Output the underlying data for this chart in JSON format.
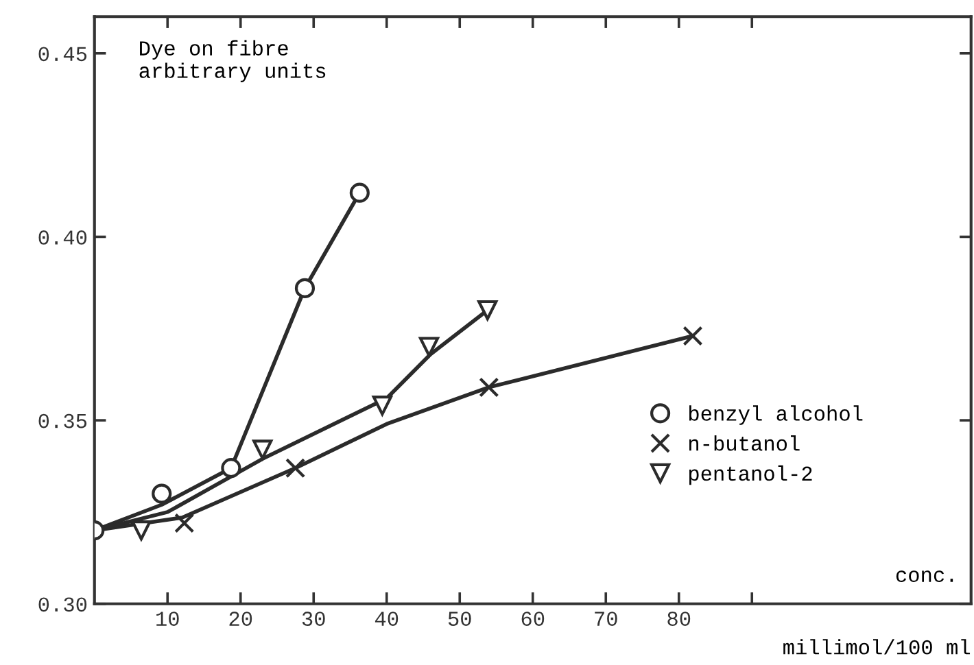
{
  "chart_data": {
    "type": "scatter",
    "ylabel": "Dye on fibre\narbitrary units",
    "xlabel": "millimol/100 ml",
    "annotations": [
      "conc."
    ],
    "xlim": [
      0,
      120
    ],
    "ylim": [
      0.3,
      0.46
    ],
    "xticks": [
      10,
      20,
      30,
      40,
      50,
      60,
      70,
      80,
      {
        "value": 90,
        "label": null
      }
    ],
    "yticks": [
      {
        "value": 0.3,
        "label": "0.30"
      },
      0.35,
      {
        "value": 0.4,
        "label": "0.40"
      },
      0.45
    ],
    "grid": false,
    "legend": "right",
    "line_style": "solid",
    "series": [
      {
        "name": "benzyl alcohol",
        "color": "#2b2b2b",
        "marker": "circle",
        "x": [
          0,
          9.2,
          18.7,
          28.8,
          36.3
        ],
        "values": [
          0.32,
          0.33,
          0.337,
          0.386,
          0.412
        ]
      },
      {
        "name": "n-butanol",
        "color": "#2b2b2b",
        "marker": "cross",
        "x": [
          12.3,
          27.5,
          54,
          81.9
        ],
        "values": [
          0.322,
          0.337,
          0.359,
          0.373
        ]
      },
      {
        "name": "pentanol-2",
        "color": "#2b2b2b",
        "marker": "triangle",
        "x": [
          6.4,
          23,
          39.4,
          45.8,
          53.8
        ],
        "values": [
          0.32,
          0.342,
          0.354,
          0.37,
          0.38
        ]
      },
      {
        "type": "line",
        "color": "#2b2b2b",
        "marker": "none",
        "x": [
          0,
          9.2,
          18.7,
          28.8,
          36.3
        ],
        "values": [
          0.32,
          0.327,
          0.337,
          0.386,
          0.412
        ]
      },
      {
        "type": "line",
        "color": "#2b2b2b",
        "marker": "none",
        "x": [
          0,
          12,
          27.5,
          40,
          54,
          81.9
        ],
        "values": [
          0.32,
          0.3235,
          0.337,
          0.349,
          0.359,
          0.373
        ]
      },
      {
        "type": "line",
        "color": "#2b2b2b",
        "marker": "none",
        "x": [
          0,
          10,
          23,
          40,
          46,
          53.8
        ],
        "values": [
          0.32,
          0.325,
          0.3395,
          0.356,
          0.368,
          0.38
        ]
      }
    ]
  }
}
